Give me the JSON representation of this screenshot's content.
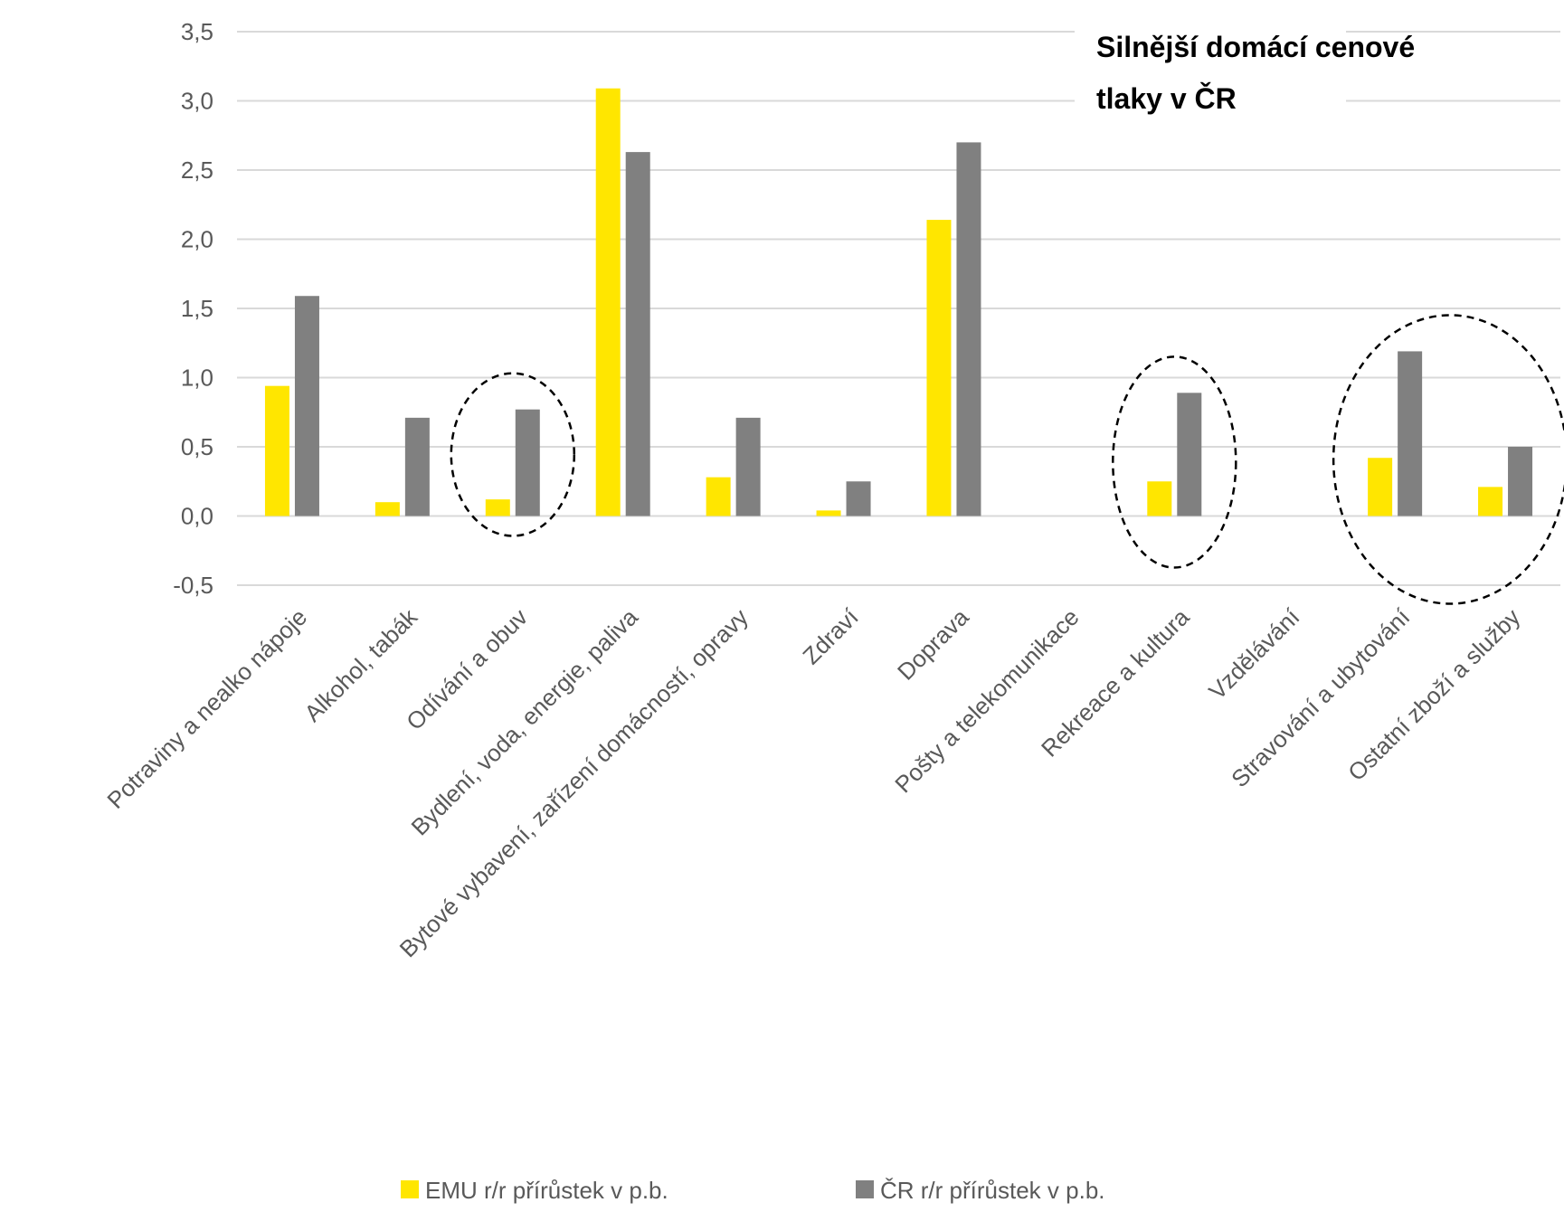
{
  "chart_data": {
    "type": "bar",
    "categories": [
      "Potraviny a nealko nápoje",
      "Alkohol, tabák",
      "Odívání a obuv",
      "Bydlení, voda, energie, paliva",
      "Bytové vybavení, zařízení domácností, opravy",
      "Zdraví",
      "Doprava",
      "Pošty a telekomunikace",
      "Rekreace a kultura",
      "Vzdělávání",
      "Stravování a ubytování",
      "Ostatní zboží a služby"
    ],
    "series": [
      {
        "name": "EMU r/r přírůstek v p.b.",
        "color": "#FFE600",
        "values": [
          0.94,
          0.1,
          0.12,
          3.09,
          0.28,
          0.04,
          2.14,
          0.0,
          0.25,
          0.0,
          0.42,
          0.21
        ]
      },
      {
        "name": "ČR r/r přírůstek v p.b.",
        "color": "#808080",
        "values": [
          1.59,
          0.71,
          0.77,
          2.63,
          0.71,
          0.25,
          2.7,
          0.0,
          0.89,
          0.0,
          1.19,
          0.5
        ]
      }
    ],
    "ylim": [
      -0.5,
      3.5
    ],
    "ytick_step": 0.5,
    "ytick_labels": [
      "-0,5",
      "0,0",
      "0,5",
      "1,0",
      "1,5",
      "2,0",
      "2,5",
      "3,0",
      "3,5"
    ],
    "grid": true,
    "legend_position": "bottom",
    "annotation": {
      "lines": [
        "Silnější domácí cenové",
        "tlaky v ČR"
      ],
      "position": "top-right"
    },
    "highlight_groups": [
      {
        "categories": [
          "Odívání a obuv"
        ]
      },
      {
        "categories": [
          "Rekreace a kultura"
        ]
      },
      {
        "categories": [
          "Stravování a ubytování",
          "Ostatní zboží a služby"
        ]
      }
    ]
  }
}
